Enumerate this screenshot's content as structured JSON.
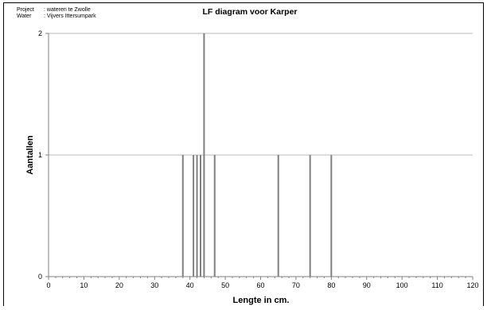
{
  "header": {
    "project_label": "Project",
    "project_value": ": wateren  te Zwolle",
    "water_label": "Water",
    "water_value": ": Vijvers  Ittersumpark"
  },
  "chart_data": {
    "type": "bar",
    "title": "LF diagram voor Karper",
    "xlabel": "Lengte in cm.",
    "ylabel": "Aantallen",
    "xlim": [
      0,
      120
    ],
    "ylim": [
      0,
      2
    ],
    "x_ticks": [
      0,
      10,
      20,
      30,
      40,
      50,
      60,
      70,
      80,
      90,
      100,
      110,
      120
    ],
    "y_ticks": [
      0,
      1,
      2
    ],
    "grid": "horizontal",
    "bar_color": "#808080",
    "x": [
      38,
      41,
      42,
      43,
      44,
      47,
      65,
      74,
      80
    ],
    "values": [
      1,
      1,
      1,
      1,
      2,
      1,
      1,
      1,
      1
    ]
  }
}
